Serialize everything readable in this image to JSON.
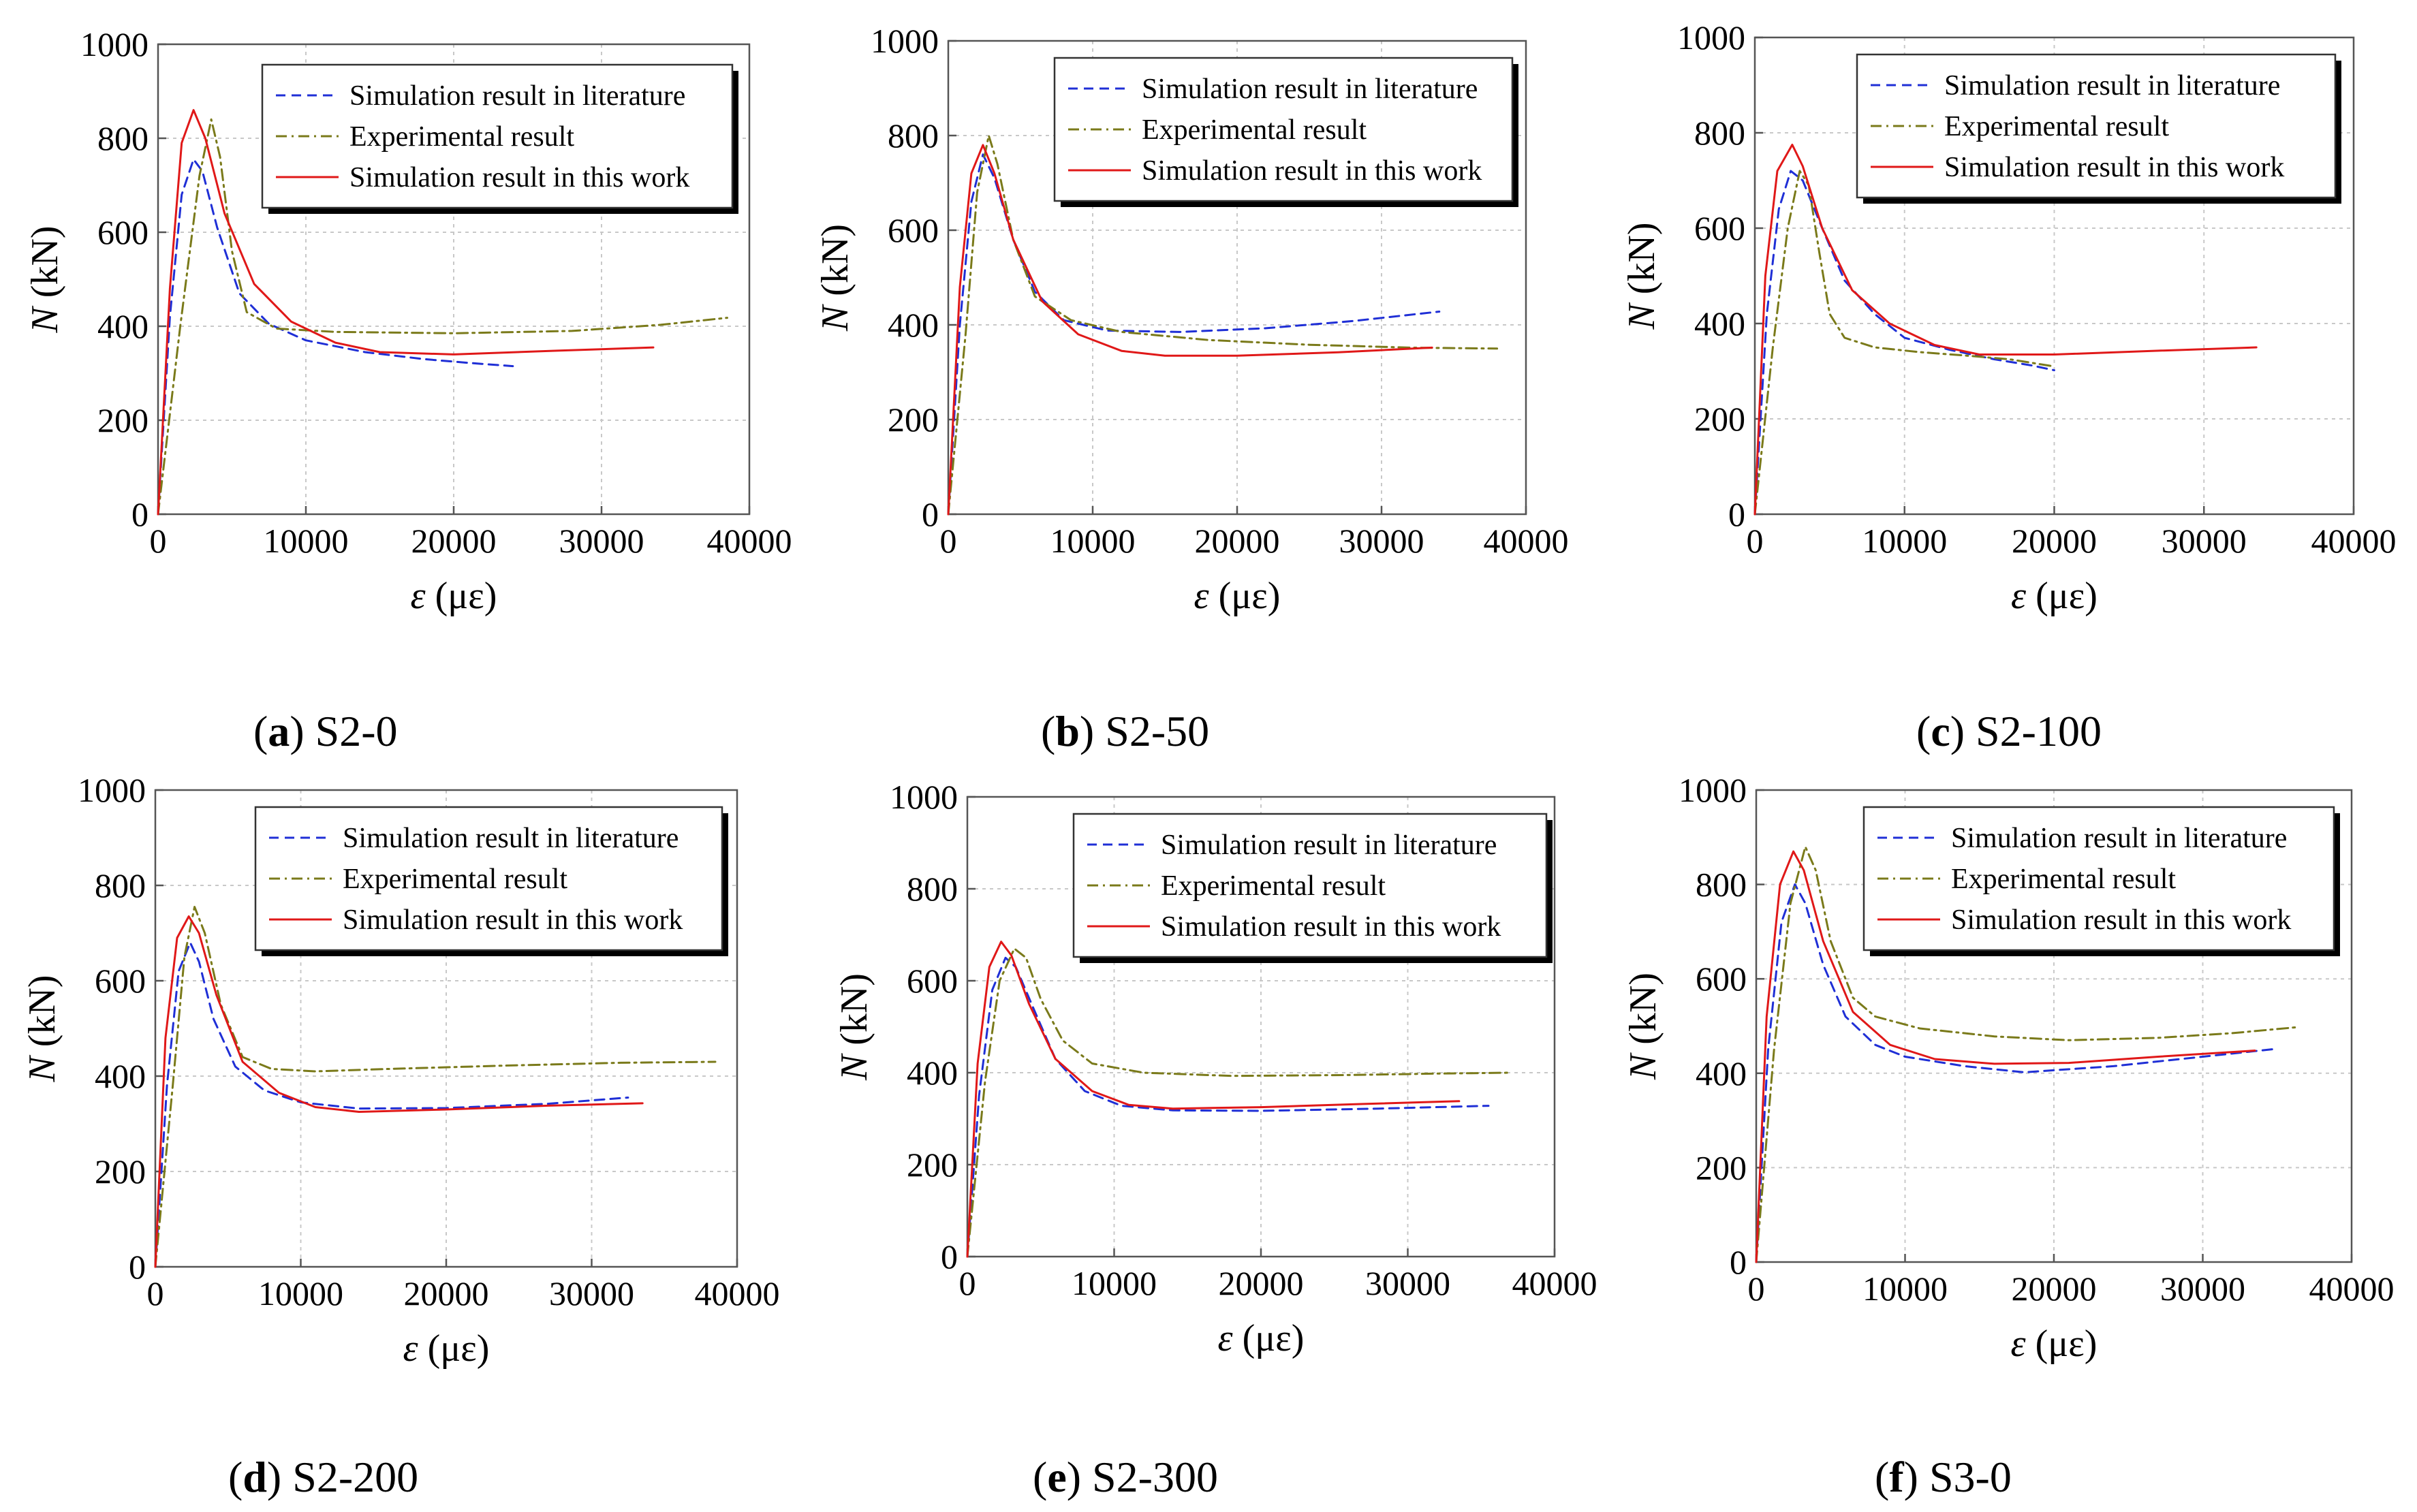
{
  "figure_title": "",
  "legend_labels": {
    "literature": "Simulation result in literature",
    "experimental": "Experimental result",
    "this_work": "Simulation result in this work"
  },
  "colors": {
    "literature": "#1f2fd6",
    "experimental": "#7a7a1a",
    "this_work": "#e01818"
  },
  "chart_data": [
    {
      "type": "line",
      "caption_letter": "a",
      "caption_name": "S2-0",
      "xlabel_symbol": "ε",
      "xlabel_unit": "(με)",
      "ylabel_symbol": "N",
      "ylabel_unit": "(kN)",
      "xlim": [
        0,
        40000
      ],
      "ylim": [
        0,
        1000
      ],
      "x_ticks": [
        "0",
        "10000",
        "20000",
        "30000",
        "40000"
      ],
      "y_ticks": [
        "0",
        "200",
        "400",
        "600",
        "800",
        "1000"
      ],
      "series": [
        {
          "key": "literature",
          "name": "Simulation result in literature",
          "style": "dashed",
          "x": [
            0,
            800,
            1600,
            2400,
            3000,
            4000,
            5500,
            7500,
            10000,
            14000,
            18000,
            21000,
            24000
          ],
          "y": [
            0,
            420,
            680,
            755,
            730,
            610,
            470,
            405,
            370,
            345,
            330,
            322,
            315
          ]
        },
        {
          "key": "experimental",
          "name": "Experimental result",
          "style": "dashdot",
          "x": [
            0,
            1500,
            2800,
            3600,
            4200,
            5000,
            6000,
            8000,
            12000,
            20000,
            28000,
            34000,
            38500
          ],
          "y": [
            0,
            400,
            720,
            840,
            760,
            560,
            430,
            395,
            388,
            385,
            390,
            403,
            418
          ]
        },
        {
          "key": "this_work",
          "name": "Simulation result in this work",
          "style": "solid",
          "x": [
            0,
            800,
            1600,
            2400,
            3200,
            4500,
            6500,
            9000,
            12000,
            15000,
            20000,
            27000,
            33500
          ],
          "y": [
            0,
            480,
            790,
            860,
            800,
            640,
            490,
            410,
            365,
            345,
            340,
            348,
            355
          ]
        }
      ]
    },
    {
      "type": "line",
      "caption_letter": "b",
      "caption_name": "S2-50",
      "xlabel_symbol": "ε",
      "xlabel_unit": "(με)",
      "ylabel_symbol": "N",
      "ylabel_unit": "(kN)",
      "xlim": [
        0,
        40000
      ],
      "ylim": [
        0,
        1000
      ],
      "x_ticks": [
        "0",
        "10000",
        "20000",
        "30000",
        "40000"
      ],
      "y_ticks": [
        "0",
        "200",
        "400",
        "600",
        "800",
        "1000"
      ],
      "series": [
        {
          "key": "literature",
          "name": "Simulation result in literature",
          "style": "dashed",
          "x": [
            0,
            800,
            1600,
            2400,
            3200,
            4500,
            6000,
            8000,
            11000,
            16000,
            22000,
            28000,
            34000
          ],
          "y": [
            0,
            400,
            660,
            760,
            710,
            580,
            470,
            410,
            388,
            385,
            393,
            408,
            428
          ]
        },
        {
          "key": "experimental",
          "name": "Experimental result",
          "style": "dashdot",
          "x": [
            0,
            1200,
            2000,
            2800,
            3400,
            4500,
            6000,
            8500,
            12000,
            18000,
            25000,
            32000,
            38000
          ],
          "y": [
            0,
            380,
            680,
            800,
            740,
            580,
            460,
            410,
            385,
            368,
            358,
            352,
            350
          ]
        },
        {
          "key": "this_work",
          "name": "Simulation result in this work",
          "style": "solid",
          "x": [
            0,
            800,
            1600,
            2400,
            3200,
            4500,
            6500,
            9000,
            12000,
            15000,
            20000,
            27000,
            33500
          ],
          "y": [
            0,
            480,
            720,
            780,
            720,
            580,
            450,
            380,
            345,
            335,
            335,
            342,
            352
          ]
        }
      ]
    },
    {
      "type": "line",
      "caption_letter": "c",
      "caption_name": "S2-100",
      "xlabel_symbol": "ε",
      "xlabel_unit": "(με)",
      "ylabel_symbol": "N",
      "ylabel_unit": "(kN)",
      "xlim": [
        0,
        40000
      ],
      "ylim": [
        0,
        1000
      ],
      "x_ticks": [
        "0",
        "10000",
        "20000",
        "30000",
        "40000"
      ],
      "y_ticks": [
        "0",
        "200",
        "400",
        "600",
        "800",
        "1000"
      ],
      "series": [
        {
          "key": "literature",
          "name": "Simulation result in literature",
          "style": "dashed",
          "x": [
            0,
            800,
            1600,
            2400,
            3200,
            4500,
            6000,
            8000,
            10000,
            13000,
            16000,
            18500,
            20000
          ],
          "y": [
            0,
            420,
            640,
            720,
            700,
            600,
            490,
            420,
            370,
            345,
            325,
            312,
            302
          ]
        },
        {
          "key": "experimental",
          "name": "Experimental result",
          "style": "dashdot",
          "x": [
            0,
            1200,
            2200,
            3000,
            3600,
            4300,
            5000,
            6000,
            8000,
            11000,
            14000,
            17000,
            20000
          ],
          "y": [
            0,
            350,
            600,
            720,
            690,
            550,
            420,
            370,
            350,
            340,
            333,
            325,
            310
          ]
        },
        {
          "key": "this_work",
          "name": "Simulation result in this work",
          "style": "solid",
          "x": [
            0,
            700,
            1500,
            2500,
            3200,
            4500,
            6500,
            9000,
            12000,
            15000,
            20000,
            27000,
            33500
          ],
          "y": [
            0,
            500,
            720,
            775,
            730,
            600,
            470,
            400,
            355,
            335,
            335,
            343,
            350
          ]
        }
      ]
    },
    {
      "type": "line",
      "caption_letter": "d",
      "caption_name": "S2-200",
      "xlabel_symbol": "ε",
      "xlabel_unit": "(με)",
      "ylabel_symbol": "N",
      "ylabel_unit": "(kN)",
      "xlim": [
        0,
        40000
      ],
      "ylim": [
        0,
        1000
      ],
      "x_ticks": [
        "0",
        "10000",
        "20000",
        "30000",
        "40000"
      ],
      "y_ticks": [
        "0",
        "200",
        "400",
        "600",
        "800",
        "1000"
      ],
      "series": [
        {
          "key": "literature",
          "name": "Simulation result in literature",
          "style": "dashed",
          "x": [
            0,
            800,
            1600,
            2400,
            3000,
            4000,
            5500,
            7500,
            10000,
            14000,
            20000,
            27000,
            32500
          ],
          "y": [
            0,
            380,
            620,
            680,
            640,
            520,
            420,
            370,
            345,
            332,
            333,
            342,
            355
          ]
        },
        {
          "key": "experimental",
          "name": "Experimental result",
          "style": "dashdot",
          "x": [
            0,
            1200,
            2000,
            2700,
            3400,
            4500,
            6000,
            8000,
            11000,
            16000,
            24000,
            32000,
            38500
          ],
          "y": [
            0,
            380,
            650,
            755,
            700,
            550,
            440,
            415,
            410,
            415,
            422,
            428,
            430
          ]
        },
        {
          "key": "this_work",
          "name": "Simulation result in this work",
          "style": "solid",
          "x": [
            0,
            700,
            1500,
            2300,
            3000,
            4200,
            6000,
            8500,
            11000,
            14000,
            20000,
            27000,
            33500
          ],
          "y": [
            0,
            480,
            690,
            735,
            700,
            570,
            430,
            365,
            335,
            325,
            330,
            338,
            343
          ]
        }
      ]
    },
    {
      "type": "line",
      "caption_letter": "e",
      "caption_name": "S2-300",
      "xlabel_symbol": "ε",
      "xlabel_unit": "(με)",
      "ylabel_symbol": "N",
      "ylabel_unit": "(kN)",
      "xlim": [
        0,
        40000
      ],
      "ylim": [
        0,
        1000
      ],
      "x_ticks": [
        "0",
        "10000",
        "20000",
        "30000",
        "40000"
      ],
      "y_ticks": [
        "0",
        "200",
        "400",
        "600",
        "800",
        "1000"
      ],
      "series": [
        {
          "key": "literature",
          "name": "Simulation result in literature",
          "style": "dashed",
          "x": [
            0,
            800,
            1700,
            2600,
            3300,
            4500,
            6000,
            8000,
            10500,
            14000,
            20000,
            28000,
            35500
          ],
          "y": [
            0,
            350,
            580,
            650,
            630,
            540,
            430,
            360,
            328,
            318,
            317,
            322,
            328
          ]
        },
        {
          "key": "experimental",
          "name": "Experimental result",
          "style": "dashdot",
          "x": [
            0,
            1200,
            2200,
            3200,
            4000,
            5000,
            6500,
            8500,
            12000,
            18000,
            26000,
            32000,
            37000
          ],
          "y": [
            0,
            380,
            600,
            670,
            650,
            560,
            470,
            420,
            400,
            393,
            395,
            398,
            400
          ]
        },
        {
          "key": "this_work",
          "name": "Simulation result in this work",
          "style": "solid",
          "x": [
            0,
            700,
            1500,
            2300,
            3000,
            4200,
            6000,
            8500,
            11000,
            14000,
            20000,
            27000,
            33500
          ],
          "y": [
            0,
            420,
            630,
            685,
            655,
            550,
            430,
            360,
            330,
            322,
            325,
            332,
            338
          ]
        }
      ]
    },
    {
      "type": "line",
      "caption_letter": "f",
      "caption_name": "S3-0",
      "xlabel_symbol": "ε",
      "xlabel_unit": "(με)",
      "ylabel_symbol": "N",
      "ylabel_unit": "(kN)",
      "xlim": [
        0,
        40000
      ],
      "ylim": [
        0,
        1000
      ],
      "x_ticks": [
        "0",
        "10000",
        "20000",
        "30000",
        "40000"
      ],
      "y_ticks": [
        "0",
        "200",
        "400",
        "600",
        "800",
        "1000"
      ],
      "series": [
        {
          "key": "literature",
          "name": "Simulation result in literature",
          "style": "dashed",
          "x": [
            0,
            800,
            1700,
            2600,
            3300,
            4500,
            6000,
            8000,
            10000,
            14000,
            18000,
            24000,
            30000,
            35000
          ],
          "y": [
            0,
            450,
            720,
            800,
            760,
            630,
            520,
            460,
            435,
            415,
            402,
            415,
            435,
            452
          ]
        },
        {
          "key": "experimental",
          "name": "Experimental result",
          "style": "dashdot",
          "x": [
            0,
            1200,
            2300,
            3300,
            4000,
            5000,
            6500,
            8000,
            11000,
            16000,
            21000,
            27000,
            32000,
            36500
          ],
          "y": [
            0,
            450,
            760,
            880,
            830,
            680,
            560,
            520,
            495,
            478,
            470,
            475,
            485,
            498
          ]
        },
        {
          "key": "this_work",
          "name": "Simulation result in this work",
          "style": "solid",
          "x": [
            0,
            700,
            1600,
            2500,
            3200,
            4500,
            6500,
            9000,
            12000,
            16000,
            21000,
            27000,
            33500
          ],
          "y": [
            0,
            520,
            800,
            870,
            830,
            680,
            530,
            460,
            430,
            420,
            422,
            435,
            448
          ]
        }
      ]
    }
  ]
}
